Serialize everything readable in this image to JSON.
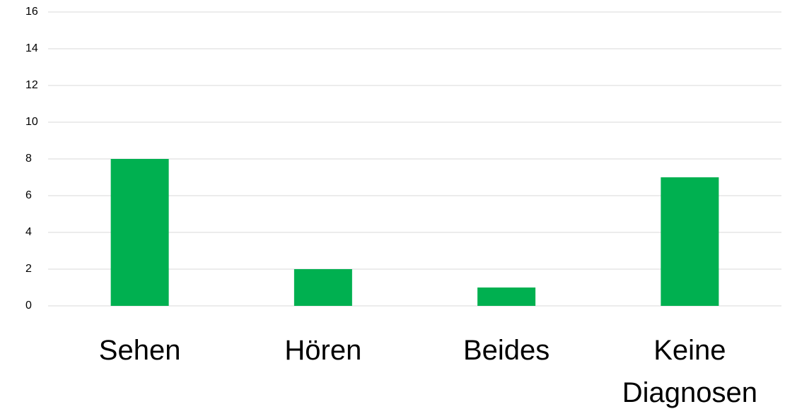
{
  "chart_data": {
    "type": "bar",
    "categories": [
      "Sehen",
      "Hören",
      "Beides",
      "Keine Diagnosen"
    ],
    "values": [
      8,
      2,
      1,
      7
    ],
    "color": "#00b050",
    "ylim": [
      0,
      16
    ],
    "yticks": [
      0,
      2,
      4,
      6,
      8,
      10,
      12,
      14,
      16
    ],
    "grid": true
  }
}
